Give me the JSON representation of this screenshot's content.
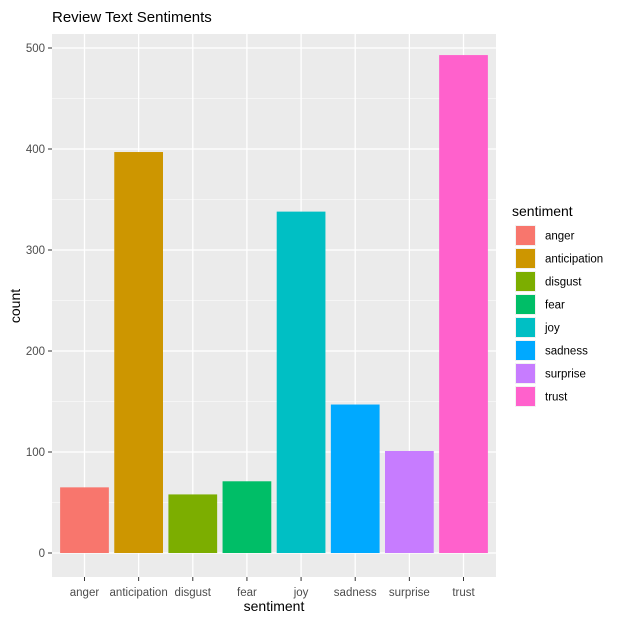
{
  "chart_data": {
    "type": "bar",
    "title": "Review Text Sentiments",
    "xlabel": "sentiment",
    "ylabel": "count",
    "categories": [
      "anger",
      "anticipation",
      "disgust",
      "fear",
      "joy",
      "sadness",
      "surprise",
      "trust"
    ],
    "values": [
      65,
      397,
      58,
      71,
      338,
      147,
      101,
      493
    ],
    "colors": [
      "#F8766D",
      "#CD9600",
      "#7CAE00",
      "#00BE67",
      "#00BFC4",
      "#00A9FF",
      "#C77CFF",
      "#FF61CC"
    ],
    "ylim": [
      0,
      520
    ],
    "yticks": [
      0,
      100,
      200,
      300,
      400,
      500
    ],
    "ytick_labels": [
      "0",
      "100",
      "200",
      "300",
      "400",
      "500"
    ],
    "grid": true,
    "legend": {
      "title": "sentiment",
      "placement": "right",
      "entries": [
        "anger",
        "anticipation",
        "disgust",
        "fear",
        "joy",
        "sadness",
        "surprise",
        "trust"
      ]
    },
    "panel_background": "#EBEBEB",
    "grid_color": "#FFFFFF"
  }
}
